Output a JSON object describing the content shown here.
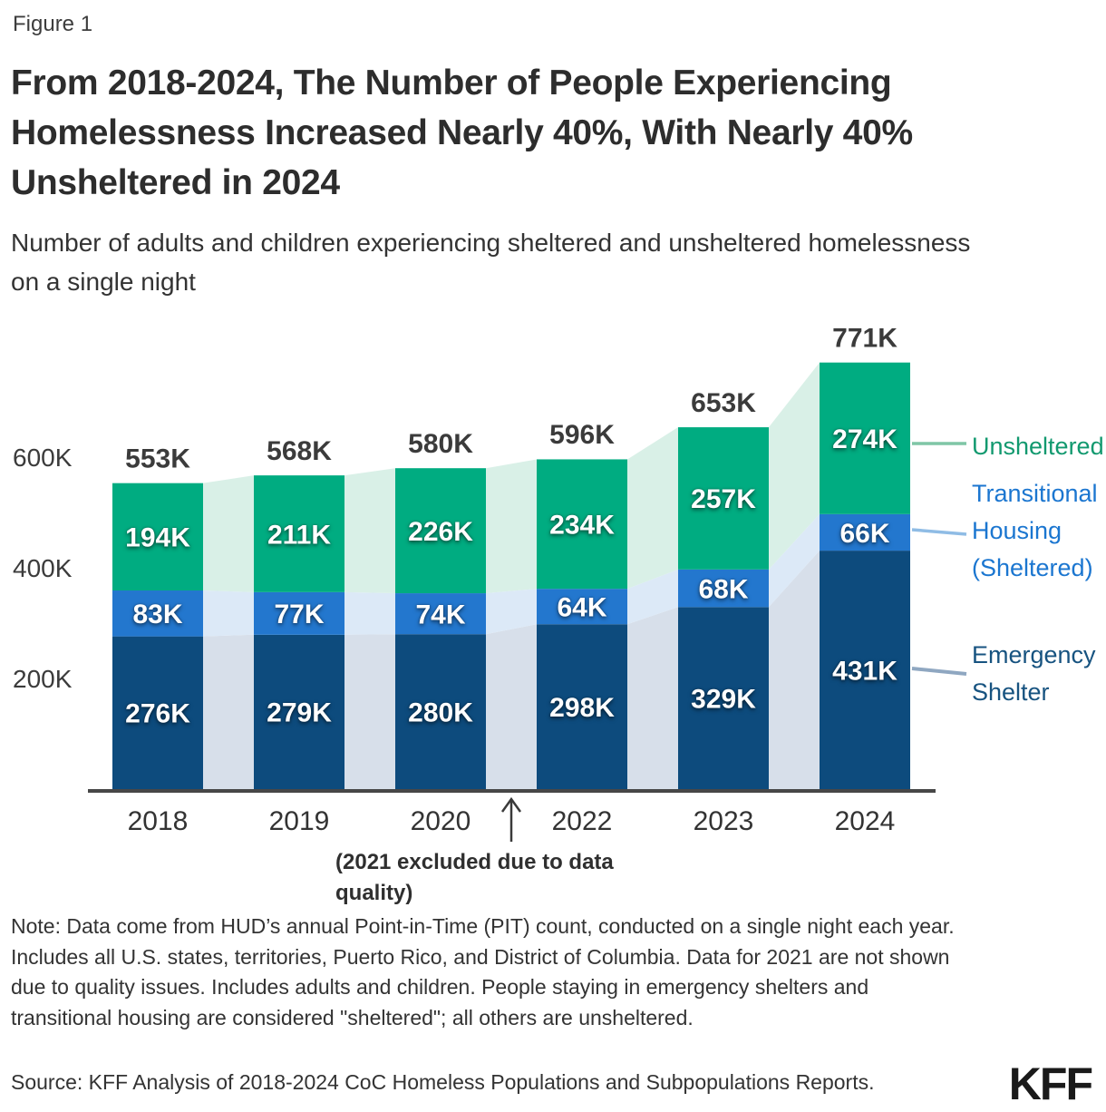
{
  "figure_label": "Figure 1",
  "title": "From 2018-2024, The Number of People Experiencing Homelessness Increased Nearly 40%, With Nearly 40% Unsheltered in 2024",
  "subtitle": "Number of adults and children experiencing sheltered and unsheltered homelessness on a single night",
  "chart_data": {
    "type": "bar",
    "stacked": true,
    "title": "Number of adults and children experiencing sheltered and unsheltered homelessness on a single night",
    "categories": [
      "2018",
      "2019",
      "2020",
      "2022",
      "2023",
      "2024"
    ],
    "values_unit": "thousands of people",
    "series": [
      {
        "name": "Emergency Shelter",
        "color": "#0d4b7d",
        "values": [
          276,
          279,
          280,
          298,
          329,
          431
        ],
        "labels": [
          "276K",
          "279K",
          "280K",
          "298K",
          "329K",
          "431K"
        ]
      },
      {
        "name": "Transitional Housing (Sheltered)",
        "color": "#2377ce",
        "values": [
          83,
          77,
          74,
          64,
          68,
          66
        ],
        "labels": [
          "83K",
          "77K",
          "74K",
          "64K",
          "68K",
          "66K"
        ]
      },
      {
        "name": "Unsheltered",
        "color": "#00ac81",
        "values": [
          194,
          211,
          226,
          234,
          257,
          274
        ],
        "labels": [
          "194K",
          "211K",
          "226K",
          "234K",
          "257K",
          "274K"
        ]
      }
    ],
    "totals": [
      553,
      568,
      580,
      596,
      653,
      771
    ],
    "total_labels": [
      "553K",
      "568K",
      "580K",
      "596K",
      "653K",
      "771K"
    ],
    "y_ticks": [
      "200K",
      "400K",
      "600K"
    ],
    "y_tick_values": [
      200,
      400,
      600
    ],
    "ylim": [
      0,
      800
    ],
    "grid": false,
    "legend_position": "right",
    "area_colors": [
      "#d7dfea",
      "#dce9f7",
      "#d9f0e7"
    ],
    "annotation": "(2021 excluded due to data quality)",
    "leader_line_colors": {
      "unsheltered": "#7fc6a6",
      "transitional": "#8fbce5",
      "emergency": "#8fa7c1"
    },
    "axis_color": "#474747",
    "arrow_color": "#3a3a3a"
  },
  "legend": {
    "unsheltered": {
      "label": "Unsheltered",
      "color": "#12996f"
    },
    "transitional": {
      "label": "Transitional Housing (Sheltered)",
      "color": "#1b76d0"
    },
    "emergency": {
      "label": "Emergency Shelter",
      "color": "#175380"
    }
  },
  "note": "Note: Data come from HUD’s annual Point-in-Time (PIT) count, conducted on a single night each year. Includes all U.S. states, territories, Puerto Rico, and District of Columbia. Data for 2021 are not shown due to quality issues. Includes adults and children. People staying in emergency shelters and transitional housing are considered \"sheltered\"; all others are unsheltered.",
  "source": "Source: KFF Analysis of 2018-2024 CoC Homeless Populations and Subpopulations Reports.",
  "logo": "KFF"
}
